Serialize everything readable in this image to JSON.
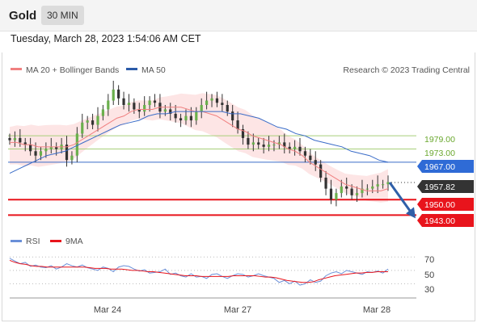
{
  "header": {
    "symbol": "Gold",
    "timeframe": "30 MIN",
    "datetime": "Tuesday, March 28, 2023 1:54:06 AM CET"
  },
  "legend": {
    "ma20_bb": "MA 20 + Bollinger Bands",
    "ma50": "MA 50",
    "credit": "Research © 2023 Trading Central",
    "rsi": "RSI",
    "ma9": "9MA"
  },
  "colors": {
    "ma20": "#f08080",
    "bb_fill": "#fde2e2",
    "ma50": "#3a6cc8",
    "resistance": "#a8cf7a",
    "resistance_text": "#6aa82e",
    "pivot": "#3a6cc8",
    "support": "#e8141c",
    "price_badge": "#333333",
    "arrow": "#2f5fa8",
    "rsi": "#6a8fd8",
    "rsi_ma": "#e8141c"
  },
  "chart_data": [
    {
      "type": "candlestick",
      "title": "Gold 30 MIN",
      "x_ticks": [
        "Mar 24",
        "Mar 27",
        "Mar 28"
      ],
      "levels": [
        {
          "label": "1979.00",
          "value": 1979.0,
          "kind": "resistance"
        },
        {
          "label": "1973.00",
          "value": 1973.0,
          "kind": "resistance"
        },
        {
          "label": "1967.00",
          "value": 1967.0,
          "kind": "pivot"
        },
        {
          "label": "1957.82",
          "value": 1957.82,
          "kind": "last_price"
        },
        {
          "label": "1950.00",
          "value": 1950.0,
          "kind": "support"
        },
        {
          "label": "1943.00",
          "value": 1943.0,
          "kind": "support"
        }
      ],
      "forecast": {
        "from": 1957.82,
        "to": 1943.0,
        "direction": "down"
      },
      "close_series": [
        1977,
        1978,
        1976,
        1975,
        1972,
        1970,
        1972,
        1973,
        1974,
        1973,
        1975,
        1968,
        1970,
        1980,
        1985,
        1986,
        1984,
        1988,
        1991,
        1995,
        2000,
        1996,
        1993,
        1994,
        1991,
        1990,
        1993,
        1995,
        1994,
        1990,
        1991,
        1989,
        1987,
        1986,
        1988,
        1986,
        1990,
        1993,
        1995,
        1996,
        1994,
        1993,
        1990,
        1986,
        1982,
        1978,
        1975,
        1976,
        1975,
        1974,
        1975,
        1975,
        1976,
        1974,
        1973,
        1974,
        1972,
        1970,
        1968,
        1966,
        1960,
        1955,
        1950,
        1953,
        1956,
        1955,
        1952,
        1953,
        1955,
        1955,
        1956,
        1957,
        1957,
        1958
      ],
      "ma20": [
        1976,
        1976,
        1975,
        1975,
        1974,
        1974,
        1974,
        1974,
        1974,
        1975,
        1977,
        1979,
        1981,
        1983,
        1985,
        1987,
        1988,
        1990,
        1991,
        1991,
        1991,
        1992,
        1992,
        1992,
        1992,
        1991,
        1990,
        1990,
        1989,
        1988,
        1986,
        1984,
        1982,
        1981,
        1979,
        1978,
        1977,
        1976,
        1975,
        1973,
        1972,
        1970,
        1967,
        1965,
        1963,
        1961,
        1959,
        1957,
        1956,
        1955,
        1954,
        1954,
        1954,
        1955
      ],
      "ma50": [
        1962,
        1964,
        1966,
        1968,
        1970,
        1971,
        1972,
        1974,
        1976,
        1978,
        1980,
        1982,
        1984,
        1985,
        1986,
        1988,
        1989,
        1989,
        1990,
        1990,
        1990,
        1990,
        1990,
        1990,
        1989,
        1989,
        1988,
        1987,
        1985,
        1983,
        1982,
        1980,
        1979,
        1977,
        1976,
        1975,
        1974,
        1972,
        1971,
        1970,
        1968,
        1967
      ],
      "y_range": [
        1938,
        2004
      ]
    },
    {
      "type": "line",
      "title": "RSI",
      "y_ticks": [
        "70",
        "50",
        "30"
      ],
      "levels": [
        70,
        50,
        30
      ],
      "y_range": [
        10,
        80
      ],
      "series": [
        {
          "name": "RSI",
          "values": [
            68,
            64,
            60,
            62,
            56,
            58,
            55,
            54,
            57,
            52,
            55,
            60,
            57,
            55,
            58,
            54,
            52,
            50,
            55,
            53,
            48,
            55,
            57,
            56,
            52,
            49,
            51,
            46,
            47,
            48,
            52,
            44,
            46,
            42,
            40,
            45,
            40,
            41,
            38,
            44,
            45,
            41,
            38,
            42,
            45,
            44,
            40,
            42,
            45,
            42,
            40,
            38,
            32,
            35,
            30,
            34,
            28,
            30,
            36,
            32,
            34,
            42,
            46,
            48,
            45,
            50,
            48,
            46,
            44,
            48,
            47,
            49,
            46,
            52
          ]
        },
        {
          "name": "9MA",
          "values": [
            65,
            62,
            60,
            59,
            57,
            56,
            56,
            55,
            55,
            55,
            55,
            55,
            55,
            55,
            55,
            54,
            53,
            53,
            53,
            52,
            52,
            52,
            51,
            50,
            50,
            49,
            48,
            48,
            47,
            46,
            45,
            44,
            43,
            42,
            42,
            42,
            41,
            41,
            41,
            41,
            41,
            41,
            42,
            42,
            42,
            42,
            42,
            41,
            40,
            40,
            39,
            37,
            35,
            34,
            33,
            32,
            32,
            33,
            36,
            38,
            40,
            42,
            43,
            44,
            45,
            46,
            46,
            47,
            47,
            48,
            48,
            48
          ]
        }
      ]
    }
  ]
}
